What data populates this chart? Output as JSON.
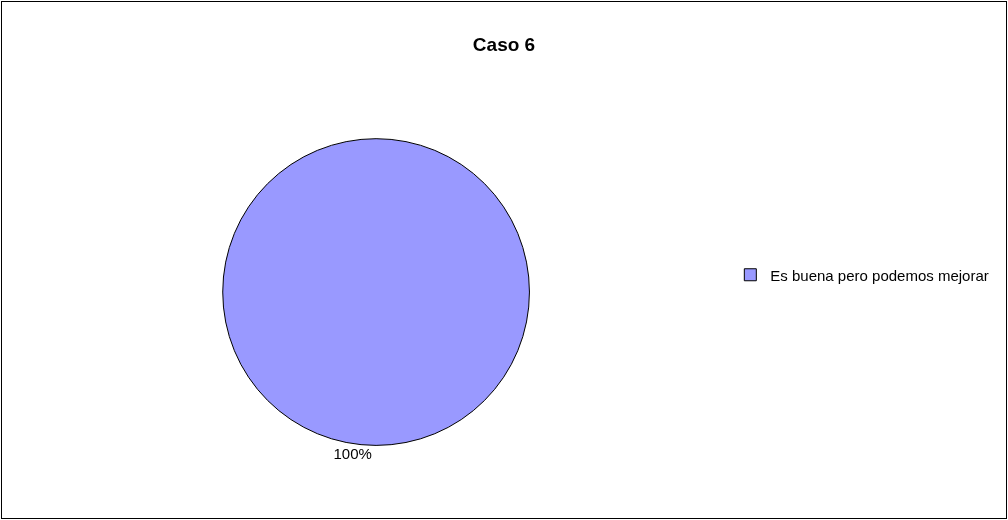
{
  "chart_data": {
    "type": "pie",
    "title": "Caso 6",
    "categories": [
      "Es buena pero podemos mejorar"
    ],
    "values": [
      100
    ],
    "colors": [
      "#9999ff"
    ],
    "value_labels": [
      "100%"
    ],
    "legend": "right"
  }
}
